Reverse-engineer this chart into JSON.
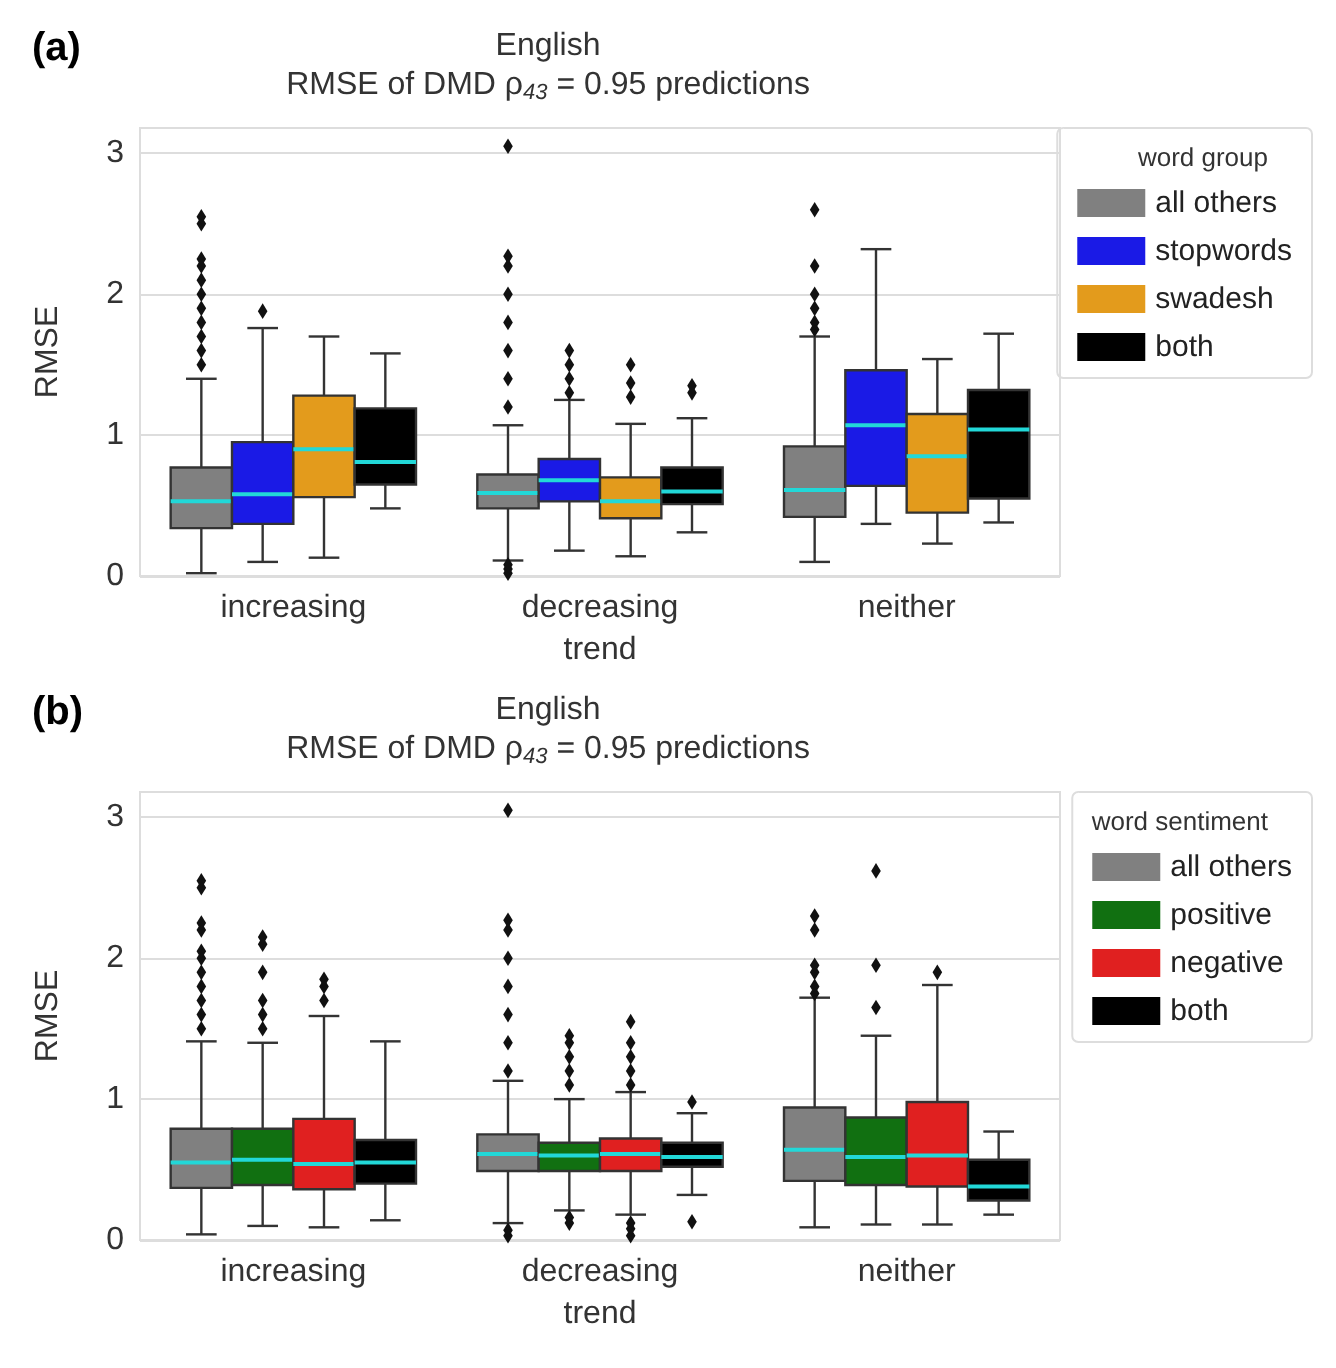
{
  "chart_data": [
    {
      "type": "box",
      "title": "English",
      "subtitle": "RMSE of DMD ρ$_{43}$ = 0.95 predictions",
      "xlabel": "trend",
      "ylabel": "RMSE",
      "legend_title": "word group",
      "annotations": [
        "(a)"
      ],
      "categories": [
        "increasing",
        "decreasing",
        "neither"
      ],
      "ylim": [
        0,
        3.18
      ],
      "yticks": [
        0,
        1,
        2,
        3
      ],
      "grid": "y",
      "legend": "top right",
      "marker": "diamond",
      "series": [
        {
          "name": "all others",
          "color": "#808080",
          "boxes": [
            {
              "low": 0.02,
              "q1": 0.34,
              "median": 0.53,
              "q3": 0.77,
              "high": 1.4,
              "outliers": [
                1.5,
                1.6,
                1.7,
                1.8,
                1.9,
                2.0,
                2.1,
                2.2,
                2.25,
                2.5,
                2.55
              ]
            },
            {
              "low": 0.11,
              "q1": 0.48,
              "median": 0.59,
              "q3": 0.72,
              "high": 1.07,
              "outliers": [
                0.02,
                0.05,
                0.08,
                1.2,
                1.4,
                1.6,
                1.8,
                2.0,
                2.2,
                2.27,
                3.05
              ]
            },
            {
              "low": 0.1,
              "q1": 0.42,
              "median": 0.61,
              "q3": 0.92,
              "high": 1.7,
              "outliers": [
                1.75,
                1.8,
                1.9,
                2.0,
                2.2,
                2.6
              ]
            }
          ]
        },
        {
          "name": "stopwords",
          "color": "#1a1ae6",
          "boxes": [
            {
              "low": 0.1,
              "q1": 0.37,
              "median": 0.58,
              "q3": 0.95,
              "high": 1.76,
              "outliers": [
                1.88
              ]
            },
            {
              "low": 0.18,
              "q1": 0.53,
              "median": 0.68,
              "q3": 0.83,
              "high": 1.25,
              "outliers": [
                1.3,
                1.4,
                1.5,
                1.6
              ]
            },
            {
              "low": 0.37,
              "q1": 0.64,
              "median": 1.07,
              "q3": 1.46,
              "high": 2.32
            }
          ]
        },
        {
          "name": "swadesh",
          "color": "#e39b1c",
          "boxes": [
            {
              "low": 0.13,
              "q1": 0.56,
              "median": 0.9,
              "q3": 1.28,
              "high": 1.7
            },
            {
              "low": 0.14,
              "q1": 0.41,
              "median": 0.53,
              "q3": 0.7,
              "high": 1.08,
              "outliers": [
                1.27,
                1.37,
                1.5
              ]
            },
            {
              "low": 0.23,
              "q1": 0.45,
              "median": 0.85,
              "q3": 1.15,
              "high": 1.54
            }
          ]
        },
        {
          "name": "both",
          "color": "#000000",
          "boxes": [
            {
              "low": 0.48,
              "q1": 0.65,
              "median": 0.81,
              "q3": 1.19,
              "high": 1.58
            },
            {
              "low": 0.31,
              "q1": 0.51,
              "median": 0.6,
              "q3": 0.77,
              "high": 1.12,
              "outliers": [
                1.3,
                1.35
              ]
            },
            {
              "low": 0.38,
              "q1": 0.55,
              "median": 1.04,
              "q3": 1.32,
              "high": 1.72
            }
          ]
        }
      ]
    },
    {
      "type": "box",
      "title": "English",
      "subtitle": "RMSE of DMD ρ$_{43}$ = 0.95 predictions",
      "xlabel": "trend",
      "ylabel": "RMSE",
      "legend_title": "word sentiment",
      "annotations": [
        "(b)"
      ],
      "categories": [
        "increasing",
        "decreasing",
        "neither"
      ],
      "ylim": [
        0,
        3.18
      ],
      "yticks": [
        0,
        1,
        2,
        3
      ],
      "grid": "y",
      "legend": "top right",
      "marker": "diamond",
      "series": [
        {
          "name": "all others",
          "color": "#808080",
          "boxes": [
            {
              "low": 0.04,
              "q1": 0.37,
              "median": 0.55,
              "q3": 0.79,
              "high": 1.41,
              "outliers": [
                1.5,
                1.6,
                1.7,
                1.8,
                1.9,
                2.0,
                2.05,
                2.2,
                2.25,
                2.5,
                2.55
              ]
            },
            {
              "low": 0.12,
              "q1": 0.49,
              "median": 0.61,
              "q3": 0.75,
              "high": 1.13,
              "outliers": [
                0.03,
                0.07,
                1.2,
                1.4,
                1.6,
                1.8,
                2.0,
                2.2,
                2.27,
                3.05
              ]
            },
            {
              "low": 0.09,
              "q1": 0.42,
              "median": 0.64,
              "q3": 0.94,
              "high": 1.72,
              "outliers": [
                1.75,
                1.8,
                1.9,
                1.95,
                2.2,
                2.3
              ]
            }
          ]
        },
        {
          "name": "positive",
          "color": "#117011",
          "boxes": [
            {
              "low": 0.1,
              "q1": 0.39,
              "median": 0.57,
              "q3": 0.79,
              "high": 1.4,
              "outliers": [
                1.5,
                1.6,
                1.7,
                1.9,
                2.1,
                2.15
              ]
            },
            {
              "low": 0.21,
              "q1": 0.49,
              "median": 0.6,
              "q3": 0.69,
              "high": 1.0,
              "outliers": [
                0.12,
                0.16,
                1.1,
                1.2,
                1.3,
                1.4,
                1.45
              ]
            },
            {
              "low": 0.11,
              "q1": 0.39,
              "median": 0.59,
              "q3": 0.87,
              "high": 1.45,
              "outliers": [
                1.65,
                1.95,
                2.62
              ]
            }
          ]
        },
        {
          "name": "negative",
          "color": "#e02020",
          "boxes": [
            {
              "low": 0.09,
              "q1": 0.36,
              "median": 0.54,
              "q3": 0.86,
              "high": 1.59,
              "outliers": [
                1.7,
                1.8,
                1.85
              ]
            },
            {
              "low": 0.18,
              "q1": 0.49,
              "median": 0.61,
              "q3": 0.72,
              "high": 1.05,
              "outliers": [
                0.03,
                0.08,
                0.12,
                1.1,
                1.2,
                1.3,
                1.4,
                1.55
              ]
            },
            {
              "low": 0.11,
              "q1": 0.38,
              "median": 0.6,
              "q3": 0.98,
              "high": 1.81,
              "outliers": [
                1.9
              ]
            }
          ]
        },
        {
          "name": "both",
          "color": "#000000",
          "boxes": [
            {
              "low": 0.14,
              "q1": 0.4,
              "median": 0.55,
              "q3": 0.71,
              "high": 1.41
            },
            {
              "low": 0.32,
              "q1": 0.52,
              "median": 0.59,
              "q3": 0.69,
              "high": 0.9,
              "outliers": [
                0.13,
                0.98
              ]
            },
            {
              "low": 0.18,
              "q1": 0.28,
              "median": 0.38,
              "q3": 0.57,
              "high": 0.77
            }
          ]
        }
      ]
    }
  ]
}
